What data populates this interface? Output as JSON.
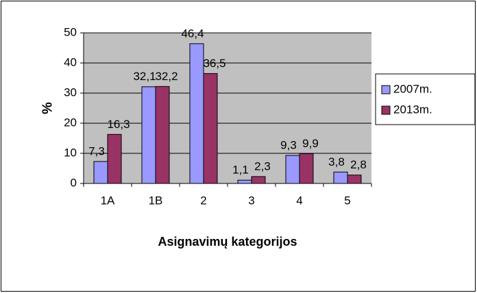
{
  "chart_data": {
    "type": "bar",
    "x_label": "Asignavimų kategorijos",
    "y_label": "%",
    "categories": [
      "1A",
      "1B",
      "2",
      "3",
      "4",
      "5"
    ],
    "series": [
      {
        "name": "2007m.",
        "color": "#9999ff",
        "values": [
          7.3,
          32.1,
          46.4,
          1.1,
          9.3,
          3.8
        ],
        "value_labels": [
          "7,3",
          "32,1",
          "46,4",
          "1,1",
          "9,3",
          "3,8"
        ]
      },
      {
        "name": "2013m.",
        "color": "#993366",
        "values": [
          16.3,
          32.2,
          36.5,
          2.3,
          9.9,
          2.8
        ],
        "value_labels": [
          "16,3",
          "32,2",
          "36,5",
          "2,3",
          "9,9",
          "2,8"
        ]
      }
    ],
    "ylim": [
      0,
      50
    ],
    "yticks": [
      0,
      10,
      20,
      30,
      40,
      50
    ],
    "grid": true,
    "legend": "right"
  }
}
